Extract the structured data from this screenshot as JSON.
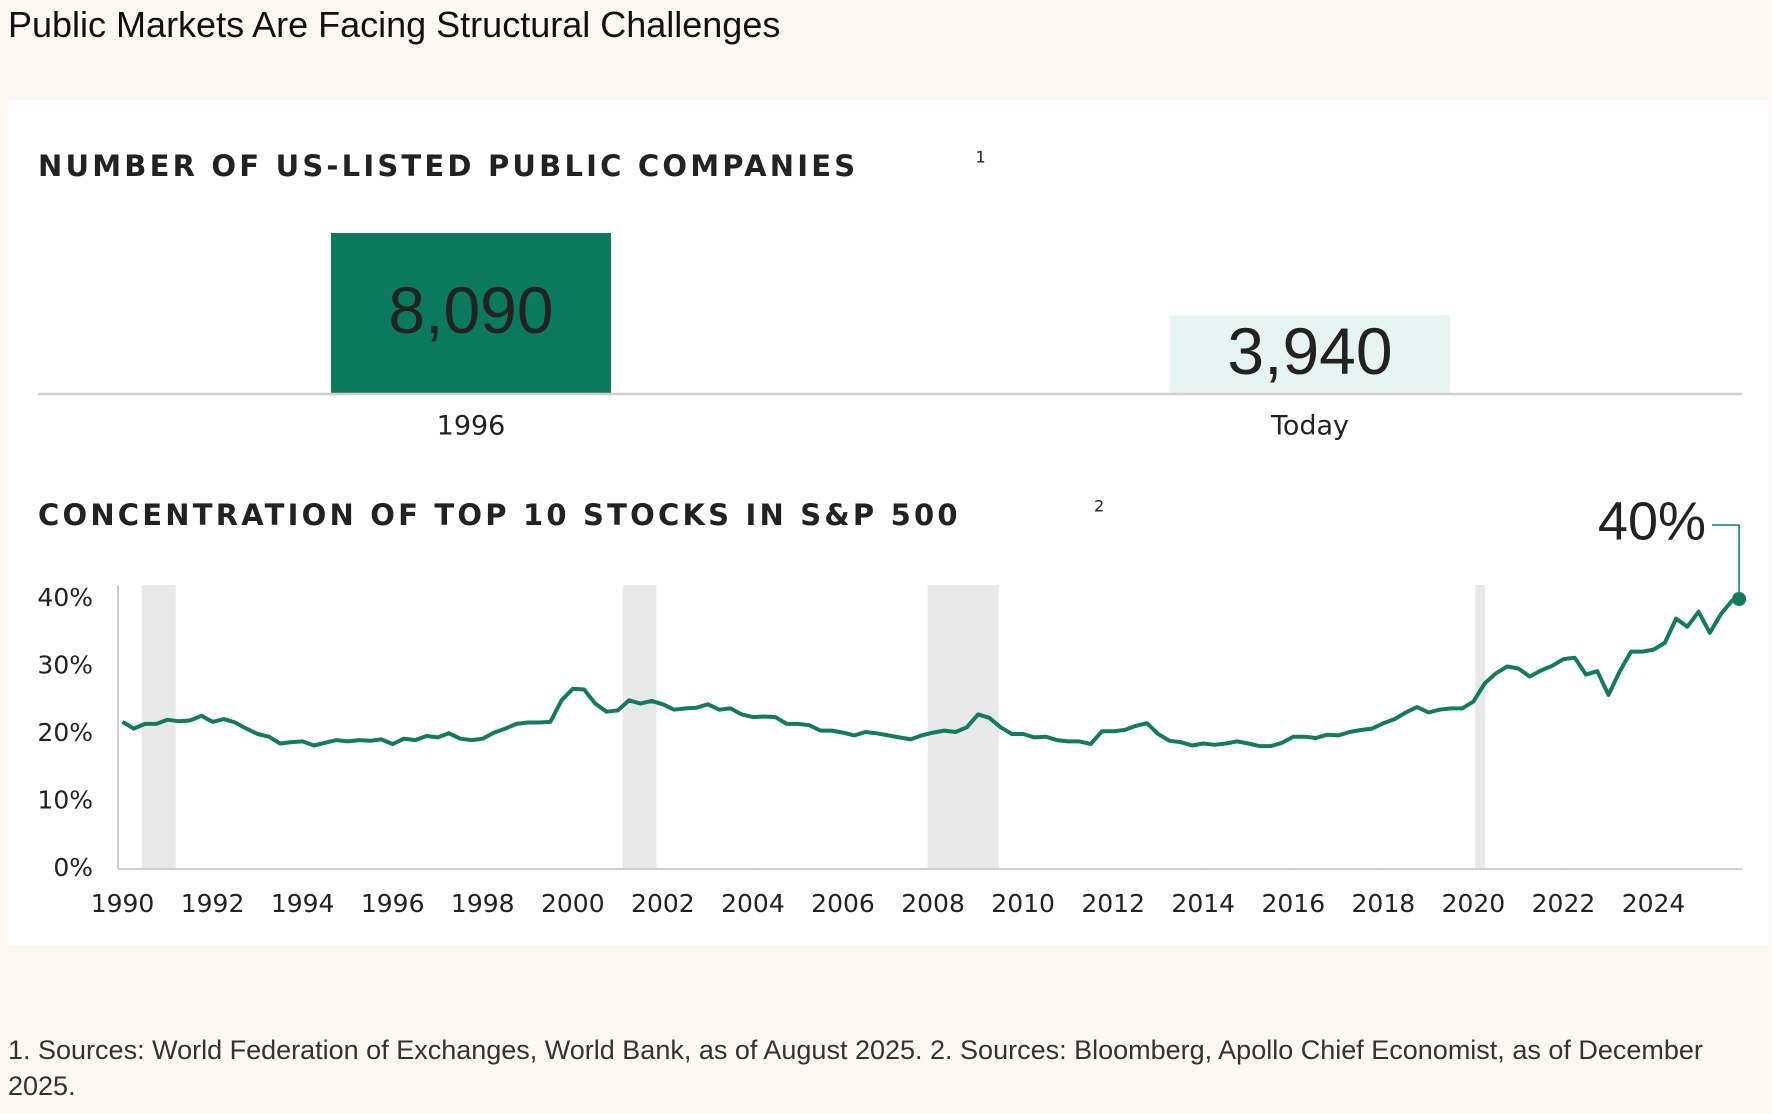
{
  "title": "Public Markets Are Facing Structural Challenges",
  "chart_data": [
    {
      "type": "bar",
      "title": "NUMBER OF US-LISTED PUBLIC COMPANIES",
      "title_note": "1",
      "categories": [
        "1996",
        "Today"
      ],
      "values": [
        8090,
        3940
      ],
      "value_labels": [
        "8,090",
        "3,940"
      ],
      "colors": [
        "#0b7a5c",
        "#e5f3f1"
      ],
      "label_colors": [
        "#ffffff",
        "#1b7f63"
      ]
    },
    {
      "type": "line",
      "title": "CONCENTRATION OF TOP 10 STOCKS IN S&P 500",
      "title_note": "2",
      "x": [
        1990.0,
        1990.25,
        1990.5,
        1990.75,
        1991.0,
        1991.25,
        1991.5,
        1991.75,
        1992.0,
        1992.25,
        1992.5,
        1992.75,
        1993.0,
        1993.25,
        1993.5,
        1993.75,
        1994.0,
        1994.25,
        1994.5,
        1994.75,
        1995.0,
        1995.25,
        1995.5,
        1995.75,
        1996.0,
        1996.25,
        1996.5,
        1996.75,
        1997.0,
        1997.25,
        1997.5,
        1997.75,
        1998.0,
        1998.25,
        1998.5,
        1998.75,
        1999.0,
        1999.25,
        1999.5,
        1999.75,
        2000.0,
        2000.25,
        2000.5,
        2000.75,
        2001.0,
        2001.25,
        2001.5,
        2001.75,
        2002.0,
        2002.25,
        2002.5,
        2002.75,
        2003.0,
        2003.25,
        2003.5,
        2003.75,
        2004.0,
        2004.25,
        2004.5,
        2004.75,
        2005.0,
        2005.25,
        2005.5,
        2005.75,
        2006.0,
        2006.25,
        2006.5,
        2006.75,
        2007.0,
        2007.25,
        2007.5,
        2007.75,
        2008.0,
        2008.25,
        2008.5,
        2008.75,
        2009.0,
        2009.25,
        2009.5,
        2009.75,
        2010.0,
        2010.25,
        2010.5,
        2010.75,
        2011.0,
        2011.25,
        2011.5,
        2011.75,
        2012.0,
        2012.25,
        2012.5,
        2012.75,
        2013.0,
        2013.25,
        2013.5,
        2013.75,
        2014.0,
        2014.25,
        2014.5,
        2014.75,
        2015.0,
        2015.25,
        2015.5,
        2015.75,
        2016.0,
        2016.25,
        2016.5,
        2016.75,
        2017.0,
        2017.25,
        2017.5,
        2017.75,
        2018.0,
        2018.25,
        2018.5,
        2018.75,
        2019.0,
        2019.25,
        2019.5,
        2019.75,
        2020.0,
        2020.25,
        2020.5,
        2020.75,
        2021.0,
        2021.25,
        2021.5,
        2021.75,
        2022.0,
        2022.25,
        2022.5,
        2022.75,
        2023.0,
        2023.25,
        2023.5,
        2023.75,
        2024.0,
        2024.25,
        2024.5,
        2024.75,
        2025.0,
        2025.25,
        2025.5,
        2025.75,
        2025.9
      ],
      "color": "#137a5e",
      "values": [
        21.8,
        20.8,
        21.5,
        21.5,
        22.1,
        21.9,
        22.0,
        22.7,
        21.8,
        22.2,
        21.7,
        20.8,
        20.0,
        19.6,
        18.6,
        18.8,
        18.9,
        18.3,
        18.7,
        19.1,
        18.9,
        19.1,
        19.0,
        19.2,
        18.5,
        19.3,
        19.1,
        19.7,
        19.5,
        20.1,
        19.3,
        19.1,
        19.3,
        20.2,
        20.8,
        21.5,
        21.7,
        21.7,
        21.8,
        25.0,
        26.7,
        26.6,
        24.5,
        23.3,
        23.5,
        25.0,
        24.5,
        24.9,
        24.4,
        23.6,
        23.8,
        23.9,
        24.4,
        23.6,
        23.8,
        22.9,
        22.5,
        22.6,
        22.5,
        21.5,
        21.5,
        21.3,
        20.5,
        20.5,
        20.2,
        19.8,
        20.3,
        20.1,
        19.8,
        19.5,
        19.2,
        19.8,
        20.2,
        20.5,
        20.3,
        21.0,
        22.9,
        22.4,
        21.0,
        20.0,
        20.0,
        19.5,
        19.6,
        19.1,
        18.9,
        18.9,
        18.5,
        20.4,
        20.4,
        20.6,
        21.2,
        21.6,
        20.0,
        19.0,
        18.8,
        18.3,
        18.6,
        18.4,
        18.6,
        18.9,
        18.6,
        18.2,
        18.2,
        18.7,
        19.6,
        19.6,
        19.4,
        19.9,
        19.8,
        20.3,
        20.6,
        20.8,
        21.6,
        22.2,
        23.2,
        24.0,
        23.2,
        23.6,
        23.8,
        23.8,
        24.8,
        27.5,
        29.0,
        30.0,
        29.7,
        28.5,
        29.4,
        30.1,
        31.1,
        31.3,
        28.8,
        29.3,
        25.8,
        29.3,
        32.2,
        32.2,
        32.5,
        33.5,
        37.1,
        35.9,
        38.1,
        35.0,
        37.8,
        39.8,
        40.0
      ],
      "shaded_spans": [
        [
          1990.43,
          1991.18
        ],
        [
          2001.11,
          2001.86
        ],
        [
          2007.88,
          2009.46
        ],
        [
          2020.04,
          2020.26
        ]
      ],
      "shade_color": "#e8e8e8",
      "annotation": {
        "value": 40,
        "label": "40%"
      },
      "xlim": [
        1989.9,
        2025.92
      ],
      "xticks": [
        1990,
        1992,
        1994,
        1996,
        1998,
        2000,
        2002,
        2004,
        2006,
        2008,
        2010,
        2012,
        2014,
        2016,
        2018,
        2020,
        2022,
        2024
      ],
      "ylim": [
        0,
        40
      ],
      "yticks": [
        {
          "value": 0,
          "label": "0%"
        },
        {
          "value": 10,
          "label": "10%"
        },
        {
          "value": 20,
          "label": "20%"
        },
        {
          "value": 30,
          "label": "30%"
        },
        {
          "value": 40,
          "label": "40%"
        }
      ]
    }
  ],
  "footnote": "1. Sources: World Federation of Exchanges, World Bank, as of August 2025. 2. Sources: Bloomberg, Apollo Chief Economist, as of December 2025."
}
